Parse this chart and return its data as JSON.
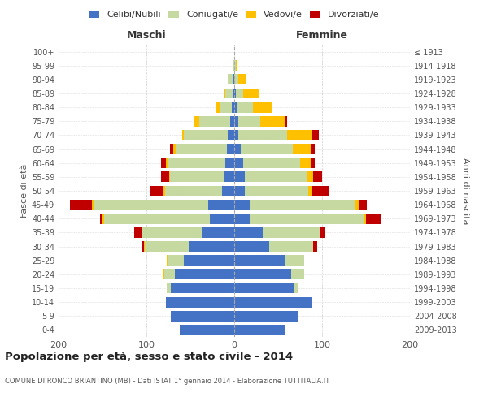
{
  "age_groups": [
    "0-4",
    "5-9",
    "10-14",
    "15-19",
    "20-24",
    "25-29",
    "30-34",
    "35-39",
    "40-44",
    "45-49",
    "50-54",
    "55-59",
    "60-64",
    "65-69",
    "70-74",
    "75-79",
    "80-84",
    "85-89",
    "90-94",
    "95-99",
    "100+"
  ],
  "birth_years": [
    "2009-2013",
    "2004-2008",
    "1999-2003",
    "1994-1998",
    "1989-1993",
    "1984-1988",
    "1979-1983",
    "1974-1978",
    "1969-1973",
    "1964-1968",
    "1959-1963",
    "1954-1958",
    "1949-1953",
    "1944-1948",
    "1939-1943",
    "1934-1938",
    "1929-1933",
    "1924-1928",
    "1919-1923",
    "1914-1918",
    "≤ 1913"
  ],
  "male": {
    "celibi": [
      62,
      72,
      78,
      72,
      68,
      57,
      52,
      37,
      28,
      30,
      14,
      11,
      10,
      8,
      7,
      5,
      3,
      2,
      2,
      0,
      0
    ],
    "coniugati": [
      0,
      0,
      0,
      5,
      12,
      18,
      50,
      68,
      120,
      130,
      65,
      62,
      65,
      58,
      50,
      35,
      14,
      8,
      5,
      1,
      0
    ],
    "vedovi": [
      0,
      0,
      0,
      0,
      1,
      2,
      1,
      1,
      2,
      2,
      2,
      1,
      3,
      3,
      2,
      5,
      3,
      2,
      0,
      0,
      0
    ],
    "divorziati": [
      0,
      0,
      0,
      0,
      0,
      0,
      3,
      8,
      3,
      25,
      14,
      9,
      5,
      4,
      0,
      0,
      0,
      0,
      0,
      0,
      0
    ]
  },
  "female": {
    "nubili": [
      58,
      72,
      88,
      68,
      65,
      58,
      40,
      32,
      18,
      18,
      12,
      12,
      10,
      7,
      5,
      5,
      3,
      2,
      0,
      0,
      0
    ],
    "coniugate": [
      0,
      0,
      0,
      5,
      15,
      22,
      50,
      65,
      130,
      120,
      72,
      70,
      65,
      60,
      55,
      25,
      18,
      8,
      5,
      2,
      0
    ],
    "vedove": [
      0,
      0,
      0,
      0,
      0,
      0,
      0,
      1,
      2,
      5,
      5,
      8,
      12,
      20,
      28,
      28,
      22,
      18,
      8,
      2,
      0
    ],
    "divorziate": [
      0,
      0,
      0,
      0,
      0,
      0,
      4,
      5,
      18,
      8,
      18,
      10,
      5,
      5,
      8,
      2,
      0,
      0,
      0,
      0,
      0
    ]
  },
  "colors": {
    "celibi": "#4472c4",
    "coniugati": "#c5d9a0",
    "vedovi": "#ffc000",
    "divorziati": "#c00000"
  },
  "xlim": 200,
  "title": "Popolazione per età, sesso e stato civile - 2014",
  "subtitle": "COMUNE DI RONCO BRIANTINO (MB) - Dati ISTAT 1° gennaio 2014 - Elaborazione TUTTITALIA.IT",
  "ylabel_left": "Fasce di età",
  "ylabel_right": "Anni di nascita",
  "xlabel_left": "Maschi",
  "xlabel_right": "Femmine",
  "bg_color": "#ffffff",
  "grid_color": "#cccccc",
  "bar_height": 0.75
}
